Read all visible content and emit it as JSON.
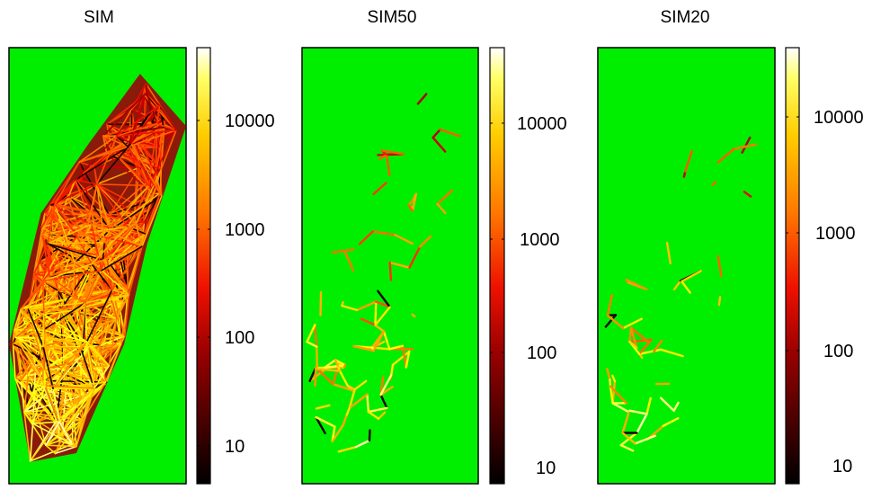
{
  "chart_data": [
    {
      "type": "heatmap",
      "title": "SIM",
      "background": "#00ee00",
      "colorbar": {
        "scale": "log",
        "range": [
          4,
          40000
        ],
        "ticks": [
          10,
          100,
          1000,
          10000
        ],
        "tick_labels": [
          "10",
          "100",
          "1000",
          "10000"
        ],
        "colormap": "hot"
      },
      "density": "dense"
    },
    {
      "type": "heatmap",
      "title": "SIM50",
      "background": "#00ee00",
      "colorbar": {
        "scale": "log",
        "range": [
          4,
          40000
        ],
        "ticks": [
          10,
          100,
          1000,
          10000
        ],
        "tick_labels": [
          "10",
          "100",
          "1000",
          "10000"
        ],
        "colormap": "hot"
      },
      "density": "medium"
    },
    {
      "type": "heatmap",
      "title": "SIM20",
      "background": "#00ee00",
      "colorbar": {
        "scale": "log",
        "range": [
          4,
          40000
        ],
        "ticks": [
          10,
          100,
          1000,
          10000
        ],
        "tick_labels": [
          "10",
          "100",
          "1000",
          "10000"
        ],
        "colormap": "hot"
      },
      "density": "sparse"
    }
  ]
}
